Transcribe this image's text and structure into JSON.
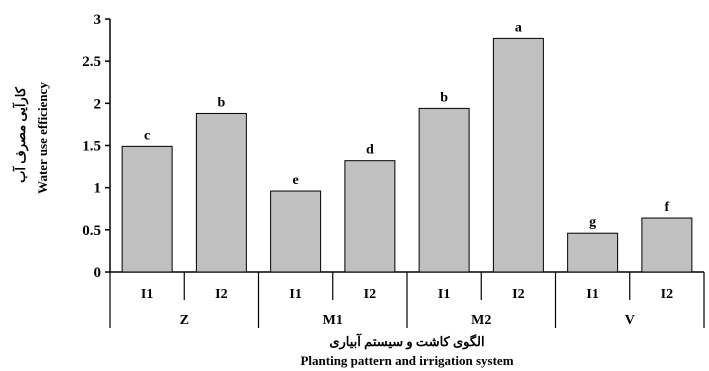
{
  "chart_data": {
    "type": "bar",
    "categories": [
      {
        "group": "Z",
        "sub": "I1"
      },
      {
        "group": "Z",
        "sub": "I2"
      },
      {
        "group": "M1",
        "sub": "I1"
      },
      {
        "group": "M1",
        "sub": "I2"
      },
      {
        "group": "M2",
        "sub": "I1"
      },
      {
        "group": "M2",
        "sub": "I2"
      },
      {
        "group": "V",
        "sub": "I1"
      },
      {
        "group": "V",
        "sub": "I2"
      }
    ],
    "groups": [
      "Z",
      "M1",
      "M2",
      "V"
    ],
    "values": [
      1.49,
      1.88,
      0.96,
      1.32,
      1.94,
      2.77,
      0.46,
      0.64
    ],
    "letters": [
      "c",
      "b",
      "e",
      "d",
      "b",
      "a",
      "g",
      "f"
    ],
    "ylabel_fa": "کارآیی مصرف آب",
    "ylabel_en": "Water use efficiency",
    "xlabel_fa": "الگوی کاشت و سیستم آبیاری",
    "xlabel_en": "Planting pattern and irrigation  system",
    "ylim": [
      0,
      3
    ],
    "yticks": [
      "0",
      "0.5",
      "1",
      "1.5",
      "2",
      "2.5",
      "3"
    ],
    "grid": false,
    "bar_color": "#c0c0c0"
  }
}
